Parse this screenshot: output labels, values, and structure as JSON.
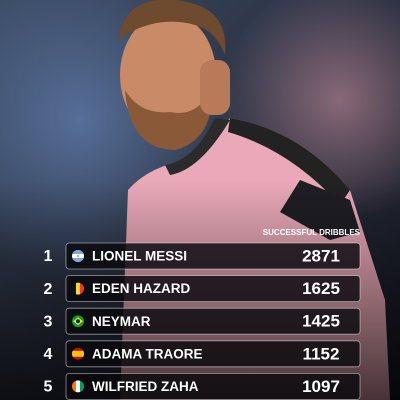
{
  "header": {
    "title": "SUCCESSFUL DRIBBLES"
  },
  "table": {
    "rows": [
      {
        "rank": 1,
        "name": "LIONEL MESSI",
        "value": 2871,
        "flag": "argentina"
      },
      {
        "rank": 2,
        "name": "EDEN HAZARD",
        "value": 1625,
        "flag": "belgium"
      },
      {
        "rank": 3,
        "name": "NEYMAR",
        "value": 1425,
        "flag": "brazil"
      },
      {
        "rank": 4,
        "name": "ADAMA TRAORE",
        "value": 1152,
        "flag": "spain"
      },
      {
        "rank": 5,
        "name": "WILFRIED ZAHA",
        "value": 1097,
        "flag": "ivory-coast"
      }
    ]
  }
}
